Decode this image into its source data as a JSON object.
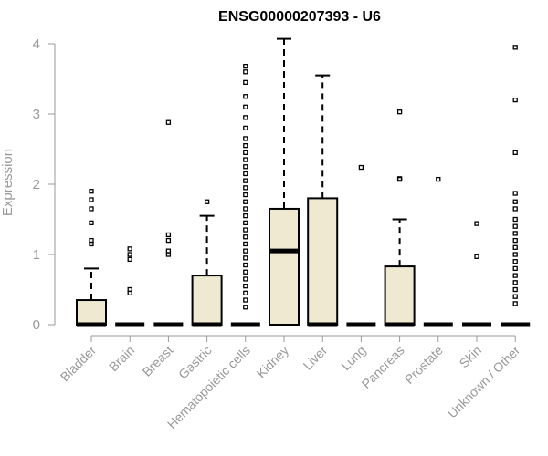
{
  "chart_data": {
    "type": "boxplot",
    "title": "ENSG00000207393 - U6",
    "ylabel": "Expression",
    "xlabel": "",
    "ylim": [
      0,
      4.1
    ],
    "yticks": [
      0,
      1,
      2,
      3,
      4
    ],
    "box_fill": "#efe9d1",
    "categories": [
      "Bladder",
      "Brain",
      "Breast",
      "Gastric",
      "Hematopoietic cells",
      "Kidney",
      "Liver",
      "Lung",
      "Pancreas",
      "Prostate",
      "Skin",
      "Unknown / Other"
    ],
    "boxes": [
      {
        "q1": 0,
        "median": 0,
        "q3": 0.35,
        "whisker_low": 0,
        "whisker_high": 0.8,
        "outliers": [
          1.15,
          1.2,
          1.45,
          1.65,
          1.78,
          1.9
        ]
      },
      {
        "q1": 0,
        "median": 0,
        "q3": 0,
        "whisker_low": 0,
        "whisker_high": 0,
        "outliers": [
          0.45,
          0.5,
          0.93,
          1.0,
          1.08
        ]
      },
      {
        "q1": 0,
        "median": 0,
        "q3": 0,
        "whisker_low": 0,
        "whisker_high": 0,
        "outliers": [
          1.0,
          1.05,
          1.2,
          1.28,
          2.88
        ]
      },
      {
        "q1": 0,
        "median": 0,
        "q3": 0.7,
        "whisker_low": 0,
        "whisker_high": 1.55,
        "outliers": [
          1.75
        ]
      },
      {
        "q1": 0,
        "median": 0,
        "q3": 0,
        "whisker_low": 0,
        "whisker_high": 0,
        "outliers": [
          0.25,
          0.35,
          0.45,
          0.55,
          0.65,
          0.75,
          0.85,
          0.95,
          1.05,
          1.15,
          1.25,
          1.35,
          1.45,
          1.55,
          1.65,
          1.75,
          1.85,
          1.95,
          2.05,
          2.15,
          2.25,
          2.35,
          2.45,
          2.55,
          2.65,
          2.8,
          2.95,
          3.1,
          3.25,
          3.45,
          3.6,
          3.68
        ]
      },
      {
        "q1": 0,
        "median": 1.05,
        "q3": 1.65,
        "whisker_low": 0,
        "whisker_high": 4.07,
        "outliers": []
      },
      {
        "q1": 0,
        "median": 0,
        "q3": 1.8,
        "whisker_low": 0,
        "whisker_high": 3.55,
        "outliers": []
      },
      {
        "q1": 0,
        "median": 0,
        "q3": 0,
        "whisker_low": 0,
        "whisker_high": 0,
        "outliers": [
          2.24
        ]
      },
      {
        "q1": 0,
        "median": 0,
        "q3": 0.83,
        "whisker_low": 0,
        "whisker_high": 1.5,
        "outliers": [
          2.07,
          2.08,
          3.03
        ]
      },
      {
        "q1": 0,
        "median": 0,
        "q3": 0,
        "whisker_low": 0,
        "whisker_high": 0,
        "outliers": [
          2.07
        ]
      },
      {
        "q1": 0,
        "median": 0,
        "q3": 0,
        "whisker_low": 0,
        "whisker_high": 0,
        "outliers": [
          0.97,
          1.44
        ]
      },
      {
        "q1": 0,
        "median": 0,
        "q3": 0,
        "whisker_low": 0,
        "whisker_high": 0,
        "outliers": [
          0.3,
          0.4,
          0.5,
          0.6,
          0.7,
          0.8,
          0.9,
          1.0,
          1.1,
          1.2,
          1.3,
          1.4,
          1.5,
          1.65,
          1.75,
          1.87,
          2.45,
          3.2,
          3.95
        ]
      }
    ]
  }
}
